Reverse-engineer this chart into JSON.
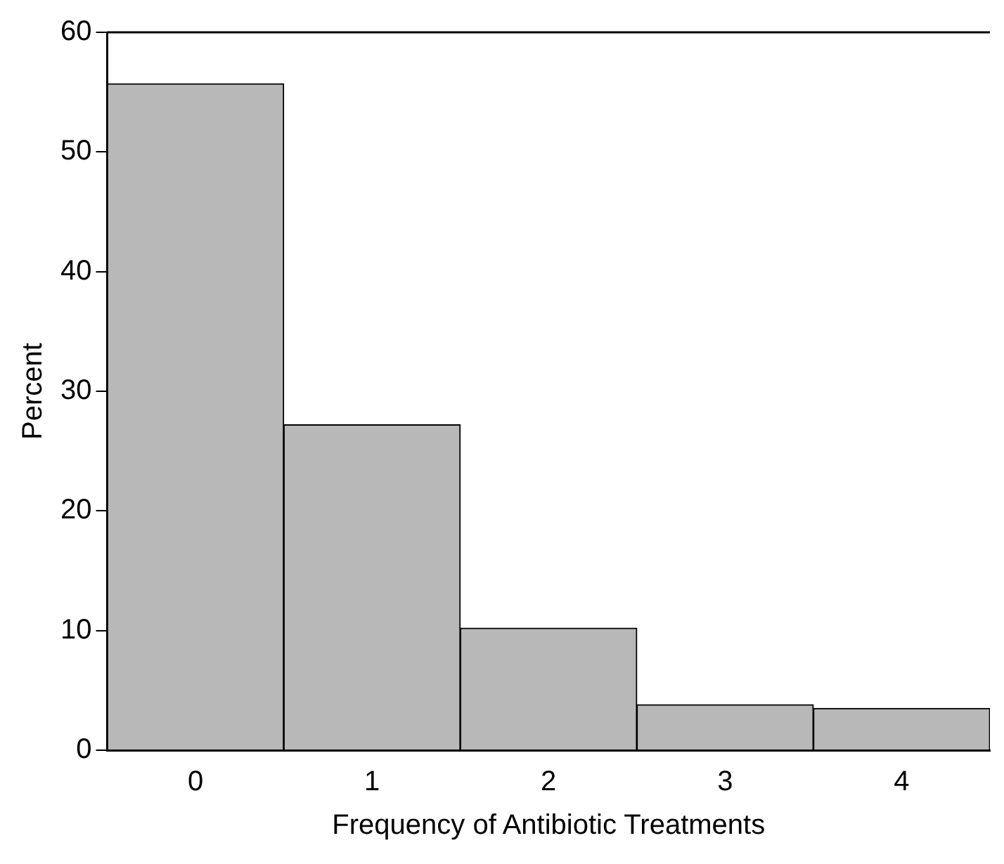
{
  "chart_data": {
    "type": "bar",
    "xlabel": "Frequency of Antibiotic Treatments",
    "ylabel": "Percent",
    "categories": [
      "0",
      "1",
      "2",
      "3",
      "4"
    ],
    "values": [
      55.7,
      27.2,
      10.2,
      3.8,
      3.5
    ],
    "color": "#b8b8b8",
    "ylim": [
      0,
      60
    ],
    "yticks": [
      0,
      10,
      20,
      30,
      40,
      50,
      60
    ],
    "grid": false,
    "legend": false
  }
}
